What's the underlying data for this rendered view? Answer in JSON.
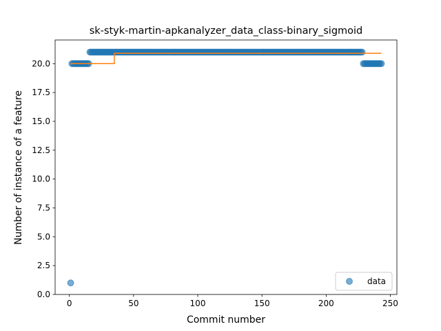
{
  "chart_data": {
    "type": "scatter",
    "title": "sk-styk-martin-apkanalyzer_data_class-binary_sigmoid",
    "xlabel": "Commit number",
    "ylabel": "Number of instance of a feature",
    "xlim": [
      -11.1,
      255.1
    ],
    "ylim": [
      0,
      22.05
    ],
    "xticks": [
      0,
      50,
      100,
      150,
      200,
      250
    ],
    "yticks": [
      0.0,
      2.5,
      5.0,
      7.5,
      10.0,
      12.5,
      15.0,
      17.5,
      20.0
    ],
    "xtick_labels": [
      "0",
      "50",
      "100",
      "150",
      "200",
      "250"
    ],
    "ytick_labels": [
      "0.0",
      "2.5",
      "5.0",
      "7.5",
      "10.0",
      "12.5",
      "15.0",
      "17.5",
      "20.0"
    ],
    "grid": false,
    "legend": {
      "placement": "lower-right",
      "entries": [
        "data"
      ]
    },
    "series": [
      {
        "name": "data",
        "kind": "points",
        "color": "#1f77b4",
        "alpha": 0.6,
        "segments": [
          {
            "x_start": 1,
            "x_end": 1,
            "y": 1
          },
          {
            "x_start": 2,
            "x_end": 15,
            "y": 20
          },
          {
            "x_start": 16,
            "x_end": 228,
            "y": 21
          },
          {
            "x_start": 229,
            "x_end": 243,
            "y": 20
          }
        ]
      },
      {
        "kind": "step-line",
        "color": "#ff7f0e",
        "x": [
          1,
          35,
          35,
          243
        ],
        "y": [
          20,
          20,
          20.9,
          20.9
        ]
      }
    ]
  }
}
